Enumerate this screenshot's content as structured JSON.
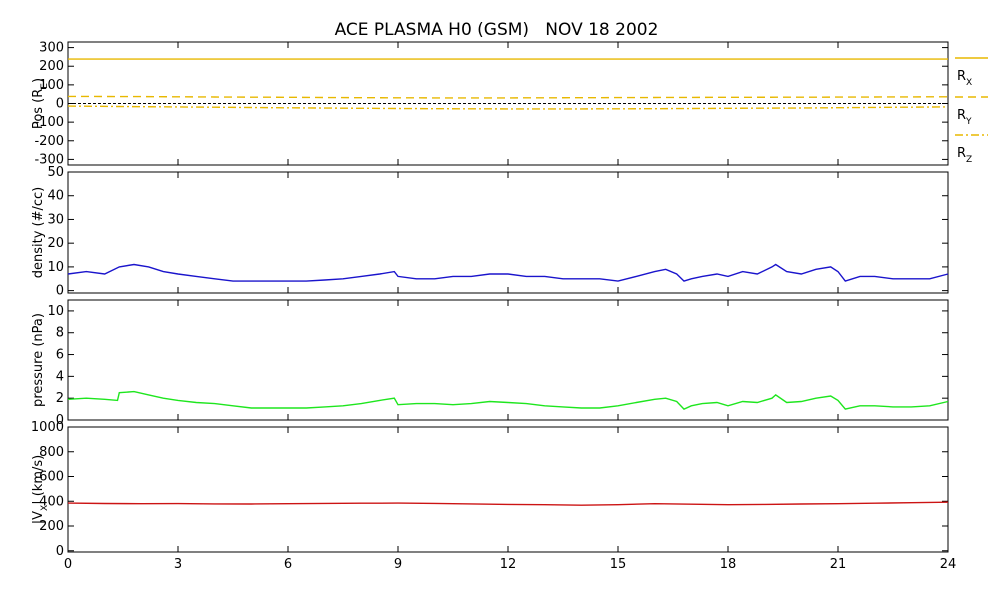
{
  "title": "ACE PLASMA H0 (GSM)   NOV 18 2002",
  "colors": {
    "position": "#e8b800",
    "density": "#1a14cc",
    "pressure": "#1ee61e",
    "velocity": "#cc1414",
    "zero_line": "#000000"
  },
  "x_axis": {
    "range": [
      0,
      24
    ],
    "ticks": [
      "0",
      "3",
      "6",
      "9",
      "12",
      "15",
      "18",
      "21",
      "24"
    ]
  },
  "chart_data": [
    {
      "type": "line",
      "ylabel_main": "Pos (R",
      "ylabel_sub": "E",
      "ylabel_end": ")",
      "ylim": [
        -330,
        330
      ],
      "yticks": [
        "300",
        "200",
        "100",
        "0",
        "-100",
        "-200",
        "-300"
      ],
      "ytick_values": [
        300,
        200,
        100,
        0,
        -100,
        -200,
        -300
      ],
      "series": [
        {
          "name": "RX",
          "main": "R",
          "sub": "X",
          "style": "solid",
          "x": [
            0,
            24
          ],
          "y": [
            238,
            238
          ]
        },
        {
          "name": "RY",
          "main": "R",
          "sub": "Y",
          "style": "dashed",
          "x": [
            0,
            2,
            4,
            6,
            8,
            10,
            12,
            14,
            16,
            18,
            20,
            22,
            24
          ],
          "y": [
            38,
            37,
            35,
            33,
            31,
            30,
            30,
            31,
            32,
            33,
            34,
            35,
            36
          ]
        },
        {
          "name": "RZ",
          "main": "R",
          "sub": "Z",
          "style": "dashdot",
          "x": [
            0,
            2,
            4,
            6,
            8,
            10,
            12,
            14,
            16,
            18,
            20,
            22,
            24
          ],
          "y": [
            -14,
            -17,
            -20,
            -23,
            -26,
            -28,
            -29,
            -29,
            -28,
            -26,
            -24,
            -21,
            -18
          ]
        }
      ],
      "zero_line": true
    },
    {
      "type": "line",
      "ylabel": "density (#/cc)",
      "ylim": [
        -1,
        50
      ],
      "yticks": [
        "50",
        "40",
        "30",
        "20",
        "10",
        "0"
      ],
      "ytick_values": [
        50,
        40,
        30,
        20,
        10,
        0
      ],
      "series": [
        {
          "x": [
            0,
            0.5,
            1.0,
            1.4,
            1.8,
            2.2,
            2.6,
            3.0,
            3.5,
            4.0,
            4.5,
            5.0,
            5.5,
            6.0,
            6.5,
            7.0,
            7.5,
            8.0,
            8.5,
            8.9,
            9.0,
            9.5,
            10.0,
            10.5,
            11.0,
            11.5,
            12.0,
            12.5,
            13.0,
            13.5,
            14.0,
            14.5,
            15.0,
            15.5,
            16.0,
            16.3,
            16.6,
            16.8,
            17.0,
            17.3,
            17.7,
            18.0,
            18.4,
            18.8,
            19.2,
            19.3,
            19.6,
            20.0,
            20.4,
            20.8,
            21.0,
            21.2,
            21.6,
            22.0,
            22.5,
            23.0,
            23.5,
            24.0
          ],
          "y": [
            7,
            8,
            7,
            10,
            11,
            10,
            8,
            7,
            6,
            5,
            4,
            4,
            4,
            4,
            4,
            4.5,
            5,
            6,
            7,
            8,
            6,
            5,
            5,
            6,
            6,
            7,
            7,
            6,
            6,
            5,
            5,
            5,
            4,
            6,
            8,
            9,
            7,
            4,
            5,
            6,
            7,
            6,
            8,
            7,
            10,
            11,
            8,
            7,
            9,
            10,
            8,
            4,
            6,
            6,
            5,
            5,
            5,
            7
          ]
        }
      ]
    },
    {
      "type": "line",
      "ylabel": "pressure (nPa)",
      "ylim": [
        0,
        11
      ],
      "yticks": [
        "10",
        "8",
        "6",
        "4",
        "2",
        "0"
      ],
      "ytick_values": [
        10,
        8,
        6,
        4,
        2,
        0
      ],
      "series": [
        {
          "x": [
            0,
            0.5,
            1.0,
            1.35,
            1.4,
            1.8,
            2.2,
            2.6,
            3.0,
            3.5,
            4.0,
            4.5,
            5.0,
            5.5,
            6.0,
            6.5,
            7.0,
            7.5,
            8.0,
            8.5,
            8.9,
            9.0,
            9.5,
            10.0,
            10.5,
            11.0,
            11.5,
            12.0,
            12.5,
            13.0,
            13.5,
            14.0,
            14.5,
            15.0,
            15.5,
            16.0,
            16.3,
            16.6,
            16.8,
            17.0,
            17.3,
            17.7,
            18.0,
            18.4,
            18.8,
            19.2,
            19.3,
            19.6,
            20.0,
            20.4,
            20.8,
            21.0,
            21.2,
            21.6,
            22.0,
            22.5,
            23.0,
            23.5,
            24.0
          ],
          "y": [
            1.9,
            2.0,
            1.9,
            1.8,
            2.5,
            2.6,
            2.3,
            2.0,
            1.8,
            1.6,
            1.5,
            1.3,
            1.1,
            1.1,
            1.1,
            1.1,
            1.2,
            1.3,
            1.5,
            1.8,
            2.0,
            1.4,
            1.5,
            1.5,
            1.4,
            1.5,
            1.7,
            1.6,
            1.5,
            1.3,
            1.2,
            1.1,
            1.1,
            1.3,
            1.6,
            1.9,
            2.0,
            1.7,
            1.0,
            1.3,
            1.5,
            1.6,
            1.3,
            1.7,
            1.6,
            2.0,
            2.3,
            1.6,
            1.7,
            2.0,
            2.2,
            1.8,
            1.0,
            1.3,
            1.3,
            1.2,
            1.2,
            1.3,
            1.7
          ]
        }
      ]
    },
    {
      "type": "line",
      "ylabel_main": "|V",
      "ylabel_sub": "X",
      "ylabel_end": "| (km/s)",
      "ylim": [
        -10,
        1000
      ],
      "yticks": [
        "1000",
        "800",
        "600",
        "400",
        "200",
        "0"
      ],
      "ytick_values": [
        1000,
        800,
        600,
        400,
        200,
        0
      ],
      "series": [
        {
          "x": [
            0,
            1,
            2,
            3,
            4,
            5,
            6,
            7,
            8,
            9,
            10,
            11,
            12,
            13,
            14,
            15,
            16,
            17,
            18,
            19,
            20,
            21,
            22,
            23,
            24
          ],
          "y": [
            385,
            382,
            380,
            381,
            379,
            378,
            380,
            383,
            384,
            385,
            383,
            379,
            375,
            372,
            368,
            372,
            380,
            376,
            372,
            375,
            378,
            380,
            384,
            388,
            392
          ]
        }
      ]
    }
  ]
}
